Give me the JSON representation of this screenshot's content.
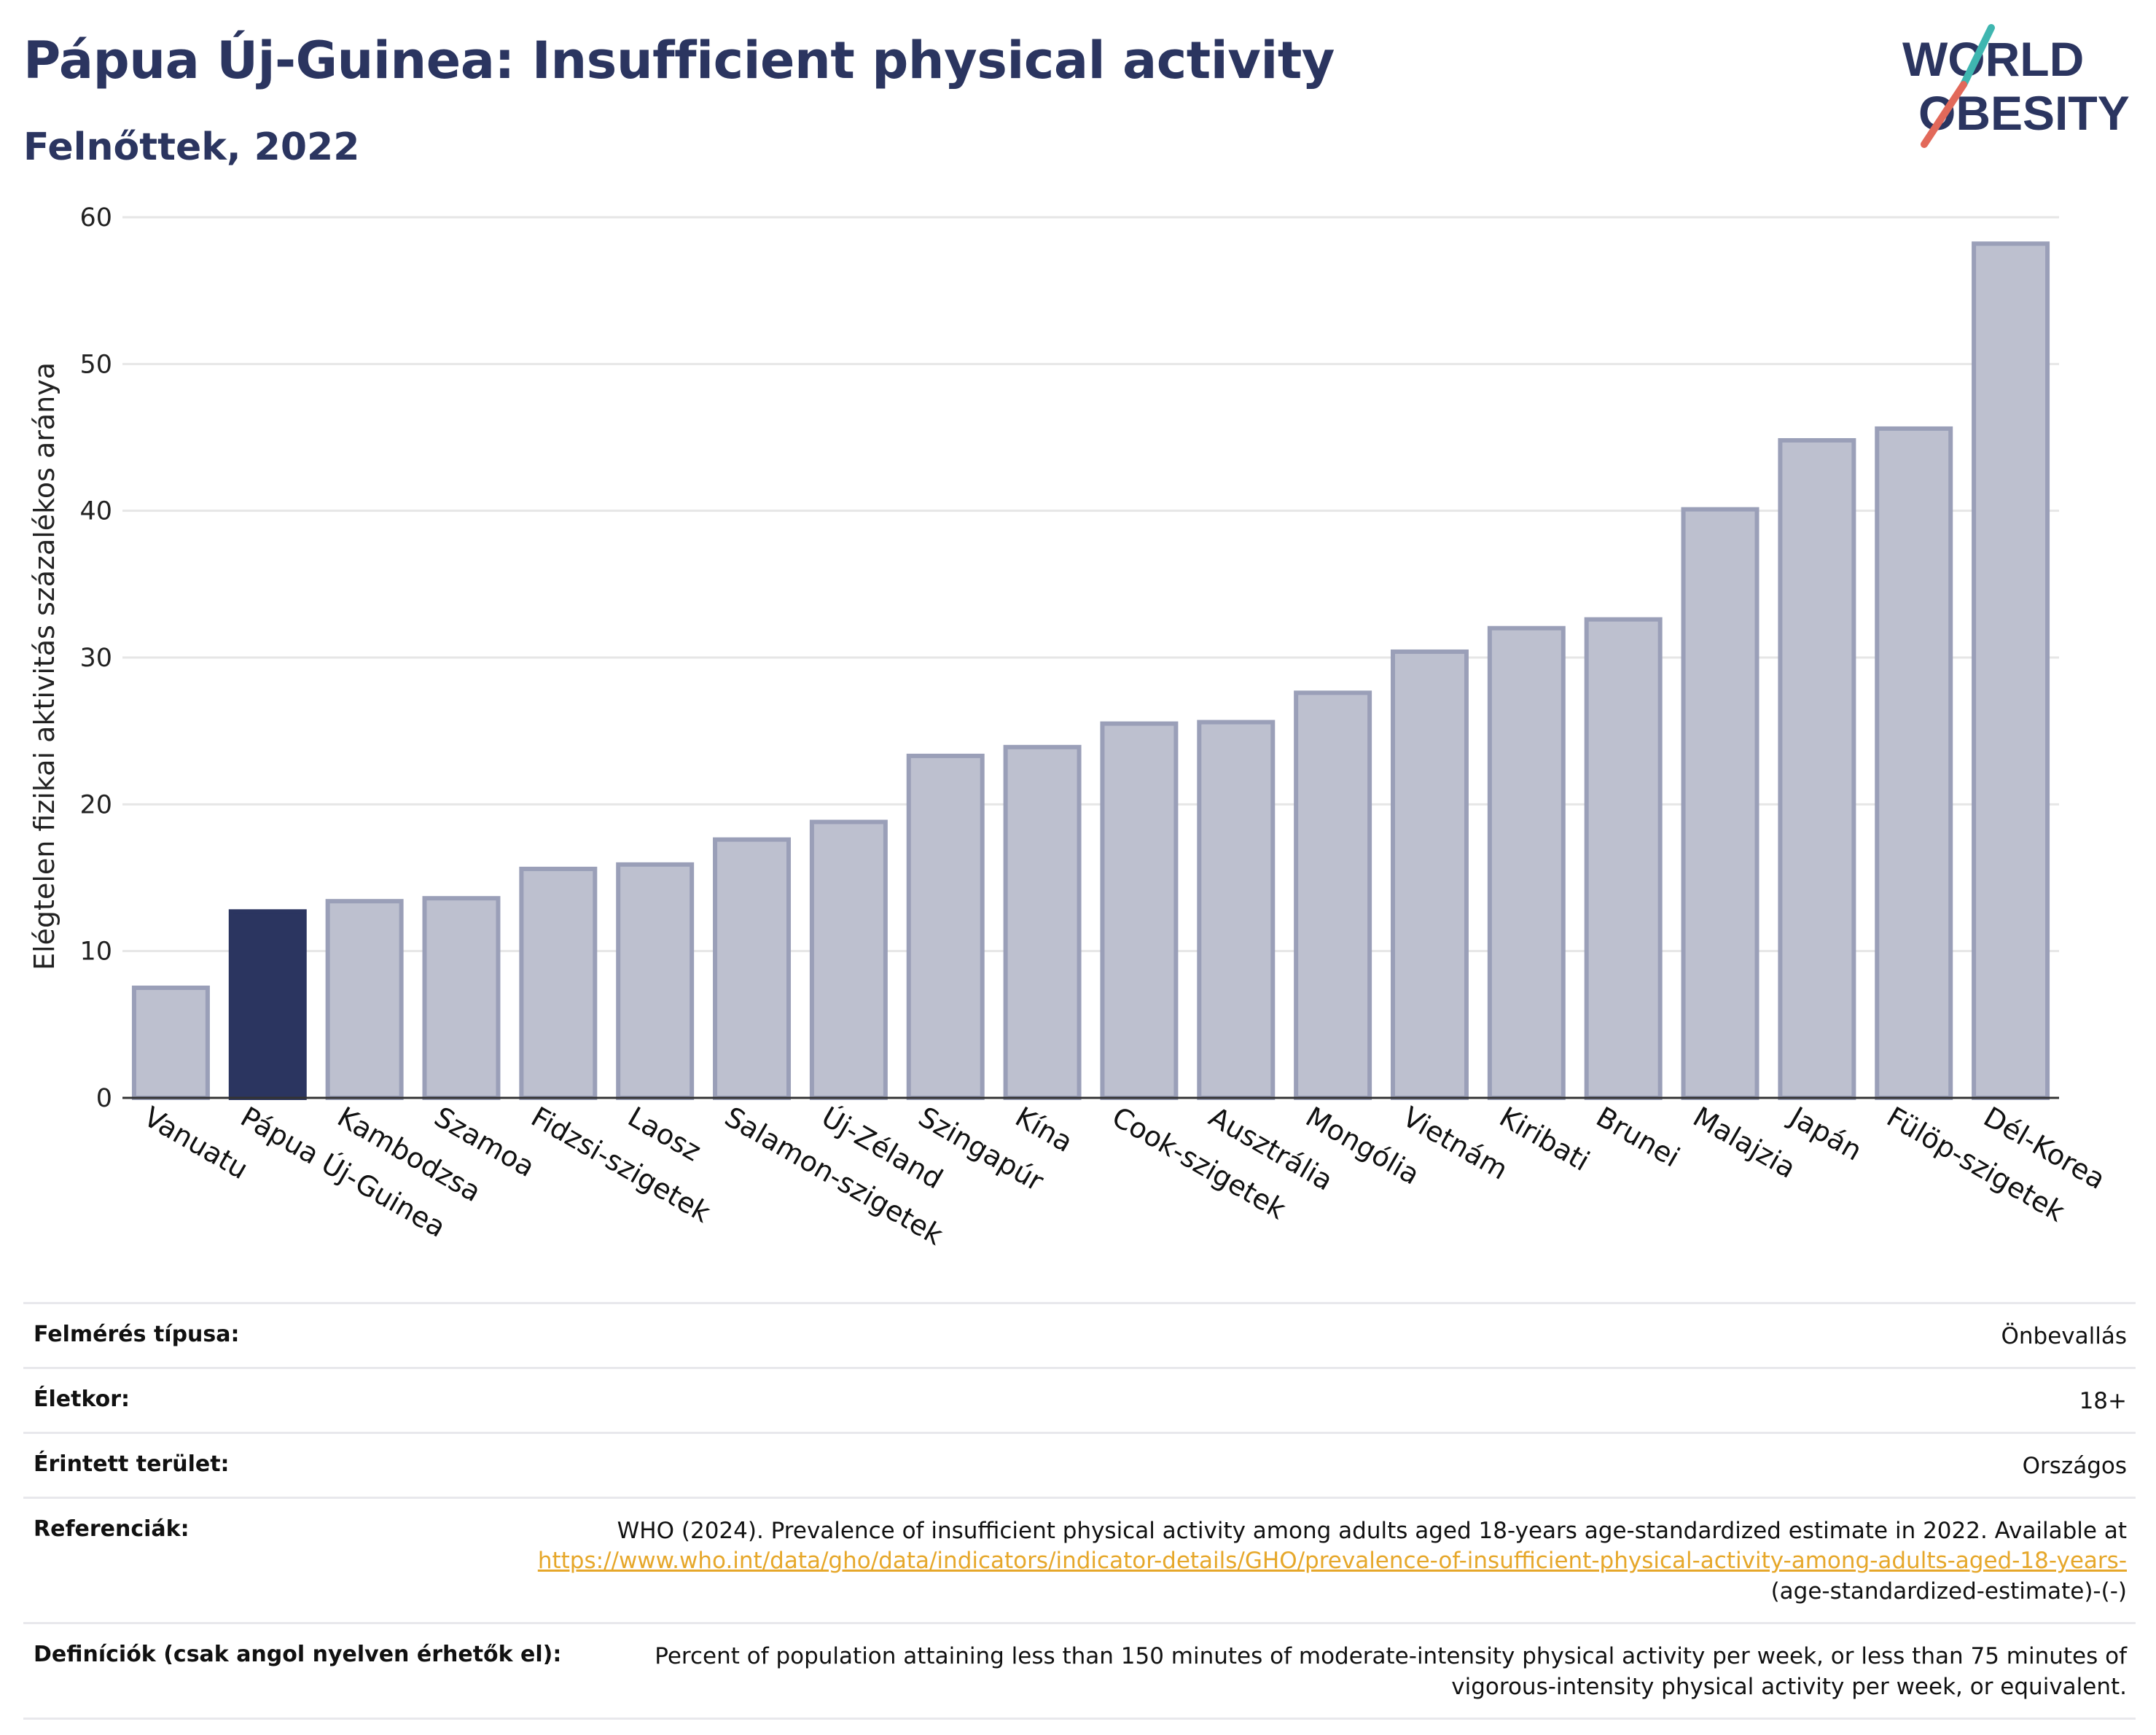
{
  "title": "Pápua Új-Guinea: Insufficient physical activity",
  "subtitle": "Felnőttek, 2022",
  "logo": {
    "line1": "WORLD",
    "line2": "OBESITY"
  },
  "colors": {
    "highlight": "#2b3560",
    "bar": "#bdc0cf",
    "bar_stroke": "#9a9fb8",
    "title": "#2b3560",
    "link": "#e6a72a"
  },
  "chart_data": {
    "type": "bar",
    "ylabel": "Elégtelen fizikai aktivitás százalékos aránya",
    "ylim": [
      0,
      60
    ],
    "yticks": [
      0,
      10,
      20,
      30,
      40,
      50,
      60
    ],
    "grid": true,
    "highlight": "Pápua Új-Guinea",
    "categories": [
      "Vanuatu",
      "Pápua Új-Guinea",
      "Kambodzsa",
      "Szamoa",
      "Fidzsi-szigetek",
      "Laosz",
      "Salamon-szigetek",
      "Új-Zéland",
      "Szingapúr",
      "Kína",
      "Cook-szigetek",
      "Ausztrália",
      "Mongólia",
      "Vietnám",
      "Kiribati",
      "Brunei",
      "Malajzia",
      "Japán",
      "Fülöp-szigetek",
      "Dél-Korea"
    ],
    "values": [
      7.5,
      12.7,
      13.4,
      13.6,
      15.6,
      15.9,
      17.6,
      18.8,
      23.3,
      23.9,
      25.5,
      25.6,
      27.6,
      30.4,
      32.0,
      32.6,
      40.1,
      44.8,
      45.6,
      58.2
    ]
  },
  "details": [
    {
      "label": "Felmérés típusa:",
      "value": "Önbevallás"
    },
    {
      "label": "Életkor:",
      "value": "18+"
    },
    {
      "label": "Érintett terület:",
      "value": "Országos"
    },
    {
      "label": "Referenciák:",
      "value": "WHO (2024). Prevalence of insufficient physical activity among adults aged 18-years age-standardized estimate in 2022. Available at",
      "link": "https://www.who.int/data/gho/data/indicators/indicator-details/GHO/prevalence-of-insufficient-physical-activity-among-adults-aged-18-years-",
      "suffix": "(age-standardized-estimate)-(-)"
    },
    {
      "label": "Definíciók (csak angol nyelven érhetők el):",
      "value": "Percent of population attaining less than 150 minutes of moderate-intensity physical activity per week, or less than 75 minutes of vigorous-intensity physical activity per week, or equivalent."
    }
  ]
}
